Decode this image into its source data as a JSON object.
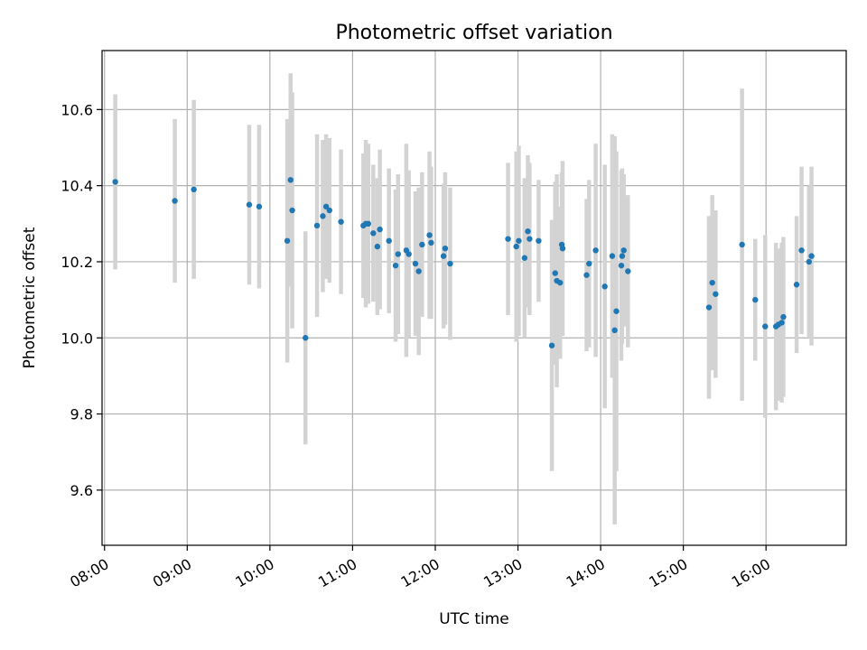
{
  "chart_data": {
    "type": "scatter",
    "title": "Photometric offset variation",
    "xlabel": "UTC time",
    "ylabel": "Photometric offset",
    "xlim": [
      7.97,
      16.97
    ],
    "ylim": [
      9.455,
      10.755
    ],
    "grid": true,
    "x_ticks": [
      {
        "value": 8,
        "label": "08:00"
      },
      {
        "value": 9,
        "label": "09:00"
      },
      {
        "value": 10,
        "label": "10:00"
      },
      {
        "value": 11,
        "label": "11:00"
      },
      {
        "value": 12,
        "label": "12:00"
      },
      {
        "value": 13,
        "label": "13:00"
      },
      {
        "value": 14,
        "label": "14:00"
      },
      {
        "value": 15,
        "label": "15:00"
      },
      {
        "value": 16,
        "label": "16:00"
      }
    ],
    "y_ticks": [
      {
        "value": 9.6,
        "label": "9.6"
      },
      {
        "value": 9.8,
        "label": "9.8"
      },
      {
        "value": 10.0,
        "label": "10.0"
      },
      {
        "value": 10.2,
        "label": "10.2"
      },
      {
        "value": 10.4,
        "label": "10.4"
      },
      {
        "value": 10.6,
        "label": "10.6"
      }
    ],
    "series": [
      {
        "name": "offset",
        "x": [
          8.13,
          8.85,
          9.08,
          9.75,
          9.87,
          10.21,
          10.25,
          10.27,
          10.43,
          10.57,
          10.64,
          10.68,
          10.72,
          10.86,
          11.13,
          11.16,
          11.19,
          11.25,
          11.3,
          11.33,
          11.44,
          11.52,
          11.55,
          11.65,
          11.68,
          11.76,
          11.8,
          11.84,
          11.93,
          11.95,
          12.1,
          12.12,
          12.18,
          12.88,
          12.98,
          13.01,
          13.08,
          13.12,
          13.14,
          13.25,
          13.41,
          13.45,
          13.47,
          13.51,
          13.53,
          13.54,
          13.83,
          13.86,
          13.94,
          14.05,
          14.14,
          14.17,
          14.19,
          14.25,
          14.26,
          14.28,
          14.33,
          15.31,
          15.35,
          15.39,
          15.71,
          15.87,
          15.99,
          16.12,
          16.15,
          16.19,
          16.21,
          16.37,
          16.43,
          16.52,
          16.55
        ],
        "y": [
          10.41,
          10.36,
          10.39,
          10.35,
          10.345,
          10.255,
          10.415,
          10.335,
          10.0,
          10.295,
          10.32,
          10.345,
          10.335,
          10.305,
          10.295,
          10.3,
          10.3,
          10.275,
          10.24,
          10.285,
          10.255,
          10.19,
          10.22,
          10.23,
          10.22,
          10.195,
          10.175,
          10.245,
          10.27,
          10.25,
          10.215,
          10.235,
          10.195,
          10.26,
          10.24,
          10.255,
          10.21,
          10.28,
          10.26,
          10.255,
          9.98,
          10.17,
          10.15,
          10.145,
          10.245,
          10.235,
          10.165,
          10.195,
          10.23,
          10.135,
          10.215,
          10.02,
          10.07,
          10.19,
          10.215,
          10.23,
          10.175,
          10.08,
          10.145,
          10.115,
          10.245,
          10.1,
          10.03,
          10.03,
          10.035,
          10.04,
          10.055,
          10.14,
          10.23,
          10.2,
          10.215
        ],
        "err": [
          0.23,
          0.215,
          0.235,
          0.21,
          0.215,
          0.32,
          0.28,
          0.31,
          0.28,
          0.24,
          0.2,
          0.19,
          0.19,
          0.19,
          0.19,
          0.22,
          0.21,
          0.18,
          0.18,
          0.21,
          0.19,
          0.2,
          0.21,
          0.28,
          0.22,
          0.19,
          0.22,
          0.19,
          0.22,
          0.2,
          0.19,
          0.2,
          0.2,
          0.2,
          0.25,
          0.25,
          0.21,
          0.2,
          0.2,
          0.16,
          0.33,
          0.24,
          0.28,
          0.2,
          0.19,
          0.23,
          0.2,
          0.22,
          0.28,
          0.32,
          0.32,
          0.51,
          0.42,
          0.25,
          0.23,
          0.2,
          0.2,
          0.24,
          0.23,
          0.22,
          0.41,
          0.16,
          0.24,
          0.22,
          0.2,
          0.21,
          0.21,
          0.18,
          0.22,
          0.2,
          0.235
        ]
      }
    ]
  }
}
